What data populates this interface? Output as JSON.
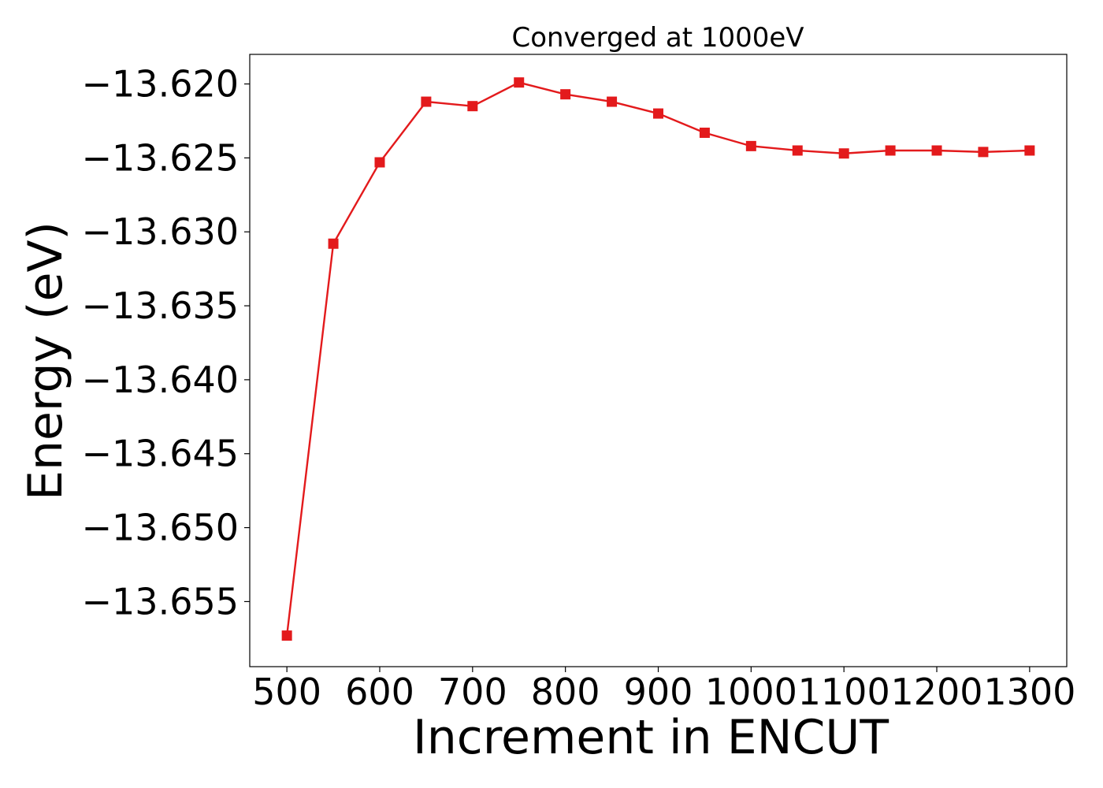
{
  "chart_data": {
    "type": "line",
    "title": "Converged at 1000eV",
    "xlabel": "Increment in ENCUT",
    "ylabel": "Energy (eV)",
    "x": [
      500,
      550,
      600,
      650,
      700,
      750,
      800,
      850,
      900,
      950,
      1000,
      1050,
      1100,
      1150,
      1200,
      1250,
      1300
    ],
    "series": [
      {
        "values": [
          -13.6573,
          -13.6308,
          -13.6253,
          -13.6212,
          -13.6215,
          -13.6199,
          -13.6207,
          -13.6212,
          -13.622,
          -13.6233,
          -13.6242,
          -13.6245,
          -13.6247,
          -13.6245,
          -13.6245,
          -13.6246,
          -13.6245
        ],
        "color": "#e31a1c",
        "marker": "square"
      }
    ],
    "xlim": [
      460,
      1340
    ],
    "ylim": [
      -13.6594,
      -13.618
    ],
    "xticks": [
      500,
      600,
      700,
      800,
      900,
      1000,
      1100,
      1200,
      1300
    ],
    "xtick_labels": [
      "500",
      "600",
      "700",
      "800",
      "900",
      "1000",
      "1100",
      "1200",
      "1300"
    ],
    "yticks": [
      -13.62,
      -13.625,
      -13.63,
      -13.635,
      -13.64,
      -13.645,
      -13.65,
      -13.655
    ],
    "ytick_labels": [
      "−13.620",
      "−13.625",
      "−13.630",
      "−13.635",
      "−13.640",
      "−13.645",
      "−13.650",
      "−13.655"
    ],
    "grid": false,
    "legend": "none"
  }
}
